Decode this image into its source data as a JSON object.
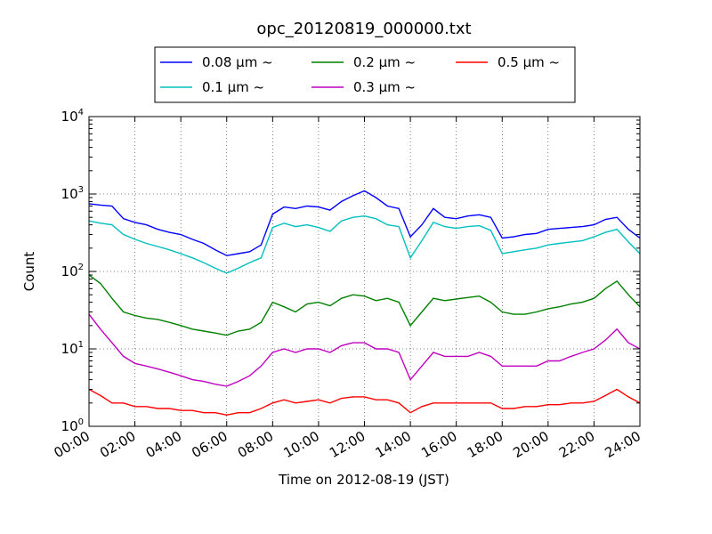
{
  "chart_data": {
    "type": "line",
    "title": "opc_20120819_000000.txt",
    "xlabel": "Time on 2012-08-19 (JST)",
    "ylabel": "Count",
    "y_scale": "log",
    "ylim": [
      1,
      10000
    ],
    "xlim": [
      "00:00",
      "24:00"
    ],
    "grid": true,
    "legend_position": "top, above plot",
    "x_tick_labels": [
      "00:00",
      "02:00",
      "04:00",
      "06:00",
      "08:00",
      "10:00",
      "12:00",
      "14:00",
      "16:00",
      "18:00",
      "20:00",
      "22:00",
      "24:00"
    ],
    "y_tick_labels": [
      {
        "base": "10",
        "exp": "0"
      },
      {
        "base": "10",
        "exp": "1"
      },
      {
        "base": "10",
        "exp": "2"
      },
      {
        "base": "10",
        "exp": "3"
      },
      {
        "base": "10",
        "exp": "4"
      }
    ],
    "x_hours": [
      0,
      0.5,
      1,
      1.5,
      2,
      2.5,
      3,
      3.5,
      4,
      4.5,
      5,
      5.5,
      6,
      6.5,
      7,
      7.5,
      8,
      8.5,
      9,
      9.5,
      10,
      10.5,
      11,
      11.5,
      12,
      12.5,
      13,
      13.5,
      14,
      14.5,
      15,
      15.5,
      16,
      16.5,
      17,
      17.5,
      18,
      18.5,
      19,
      19.5,
      20,
      20.5,
      21,
      21.5,
      22,
      22.5,
      23,
      23.5,
      24
    ],
    "series": [
      {
        "name": "0.08 μm ~",
        "color": "#0000ff",
        "values": [
          750,
          720,
          700,
          480,
          430,
          400,
          350,
          320,
          300,
          260,
          230,
          190,
          160,
          170,
          180,
          220,
          550,
          680,
          650,
          700,
          680,
          620,
          800,
          950,
          1100,
          900,
          700,
          650,
          280,
          400,
          650,
          500,
          480,
          520,
          540,
          500,
          270,
          280,
          300,
          310,
          350,
          360,
          370,
          380,
          400,
          470,
          500,
          350,
          270
        ]
      },
      {
        "name": "0.1 μm ~",
        "color": "#00bfbf",
        "values": [
          450,
          420,
          400,
          300,
          260,
          230,
          210,
          190,
          170,
          150,
          130,
          110,
          95,
          110,
          130,
          150,
          370,
          420,
          380,
          400,
          370,
          330,
          450,
          500,
          520,
          480,
          400,
          380,
          150,
          250,
          430,
          380,
          360,
          380,
          390,
          340,
          170,
          180,
          190,
          200,
          220,
          230,
          240,
          250,
          280,
          320,
          350,
          240,
          170
        ]
      },
      {
        "name": "0.2 μm ~",
        "color": "#008000",
        "values": [
          90,
          70,
          45,
          30,
          27,
          25,
          24,
          22,
          20,
          18,
          17,
          16,
          15,
          17,
          18,
          22,
          40,
          35,
          30,
          38,
          40,
          36,
          45,
          50,
          48,
          42,
          45,
          40,
          20,
          30,
          45,
          42,
          44,
          46,
          48,
          40,
          30,
          28,
          28,
          30,
          33,
          35,
          38,
          40,
          45,
          60,
          75,
          50,
          35
        ]
      },
      {
        "name": "0.3 μm ~",
        "color": "#bf00bf",
        "values": [
          28,
          18,
          12,
          8,
          6.5,
          6,
          5.5,
          5,
          4.5,
          4,
          3.8,
          3.5,
          3.3,
          3.8,
          4.5,
          6,
          9,
          10,
          9,
          10,
          10,
          9,
          11,
          12,
          12,
          10,
          10,
          9,
          4,
          6,
          9,
          8,
          8,
          8,
          9,
          8,
          6,
          6,
          6,
          6,
          7,
          7,
          8,
          9,
          10,
          13,
          18,
          12,
          10
        ]
      },
      {
        "name": "0.5 μm ~",
        "color": "#ff0000",
        "values": [
          3,
          2.5,
          2,
          2,
          1.8,
          1.8,
          1.7,
          1.7,
          1.6,
          1.6,
          1.5,
          1.5,
          1.4,
          1.5,
          1.5,
          1.7,
          2,
          2.2,
          2,
          2.1,
          2.2,
          2,
          2.3,
          2.4,
          2.4,
          2.2,
          2.2,
          2,
          1.5,
          1.8,
          2,
          2,
          2,
          2,
          2,
          2,
          1.7,
          1.7,
          1.8,
          1.8,
          1.9,
          1.9,
          2,
          2,
          2.1,
          2.5,
          3,
          2.4,
          2
        ]
      }
    ]
  }
}
